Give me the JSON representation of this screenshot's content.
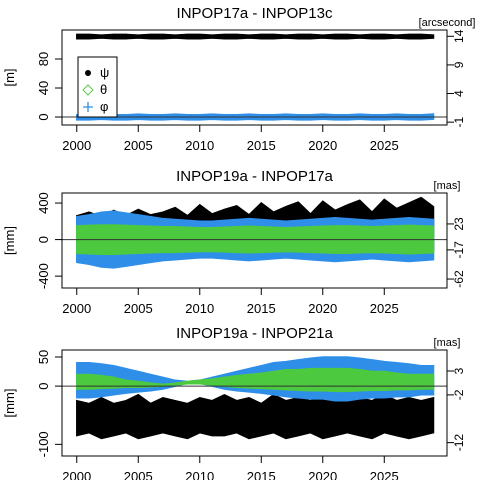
{
  "chart_data": [
    {
      "type": "band",
      "title": "INPOP17a - INPOP13c",
      "ylabel": "[m]",
      "y2label": "[arcsecond]",
      "x": [
        2000,
        2001,
        2002,
        2003,
        2004,
        2005,
        2006,
        2007,
        2008,
        2009,
        2010,
        2011,
        2012,
        2013,
        2014,
        2015,
        2016,
        2017,
        2018,
        2019,
        2020,
        2021,
        2022,
        2023,
        2024,
        2025,
        2026,
        2027,
        2028,
        2029
      ],
      "xlim": [
        1998.8,
        2030.1
      ],
      "xticks": [
        2000,
        2005,
        2010,
        2015,
        2020,
        2025
      ],
      "ylim": [
        -11,
        120
      ],
      "yticks": [
        0,
        40,
        80
      ],
      "y2lim": [
        -1.5,
        15.1
      ],
      "y2ticks": [
        -1,
        4,
        9,
        14
      ],
      "legend": "topleft",
      "series": [
        {
          "name": "ψ",
          "color": "#000000",
          "marker": "point",
          "values": [
            114,
            114,
            113,
            114,
            114,
            113,
            114,
            114,
            113,
            114,
            114,
            113,
            114,
            114,
            113,
            114,
            114,
            113,
            114,
            114,
            113,
            114,
            114,
            113,
            114,
            114,
            113,
            114,
            114,
            113
          ],
          "lower": [
            108,
            108,
            109,
            108,
            108,
            109,
            108,
            108,
            109,
            108,
            108,
            109,
            108,
            108,
            109,
            108,
            108,
            109,
            108,
            108,
            109,
            108,
            108,
            109,
            108,
            108,
            109,
            108,
            108,
            109
          ]
        },
        {
          "name": "θ",
          "color": "#5cc94a",
          "marker": "diamond",
          "values": [
            1,
            1,
            1,
            1,
            1,
            1,
            1,
            1,
            1,
            1,
            1,
            1,
            1,
            1,
            1,
            1,
            1,
            1,
            1,
            1,
            1,
            1,
            1,
            1,
            1,
            1,
            1,
            1,
            1,
            1
          ],
          "lower": [
            -1,
            -1,
            -1,
            -1,
            -1,
            -1,
            -1,
            -1,
            -1,
            -1,
            -1,
            -1,
            -1,
            -1,
            -1,
            -1,
            -1,
            -1,
            -1,
            -1,
            -1,
            -1,
            -1,
            -1,
            -1,
            -1,
            -1,
            -1,
            -1,
            -1
          ]
        },
        {
          "name": "φ",
          "color": "#2f8fe8",
          "marker": "plus",
          "values": [
            3,
            3,
            4,
            3,
            3,
            4,
            3,
            3,
            4,
            3,
            3,
            4,
            3,
            3,
            4,
            3,
            3,
            4,
            3,
            3,
            4,
            3,
            3,
            4,
            3,
            3,
            4,
            3,
            3,
            4
          ],
          "lower": [
            -4,
            -4,
            -3,
            -4,
            -4,
            -3,
            -4,
            -4,
            -3,
            -4,
            -4,
            -3,
            -4,
            -4,
            -3,
            -4,
            -4,
            -3,
            -4,
            -4,
            -3,
            -4,
            -4,
            -3,
            -4,
            -4,
            -3,
            -4,
            -4,
            -3
          ]
        }
      ]
    },
    {
      "type": "band",
      "title": "INPOP19a - INPOP17a",
      "ylabel": "[mm]",
      "y2label": "[mas]",
      "x": [
        2000,
        2001,
        2002,
        2003,
        2004,
        2005,
        2006,
        2007,
        2008,
        2009,
        2010,
        2011,
        2012,
        2013,
        2014,
        2015,
        2016,
        2017,
        2018,
        2019,
        2020,
        2021,
        2022,
        2023,
        2024,
        2025,
        2026,
        2027,
        2028,
        2029
      ],
      "xlim": [
        1998.8,
        2030.1
      ],
      "xticks": [
        2000,
        2005,
        2010,
        2015,
        2020,
        2025
      ],
      "ylim": [
        -530,
        510
      ],
      "yticks": [
        -400,
        0,
        400
      ],
      "y2lim": [
        -75.8,
        70.7
      ],
      "y2ticks": [
        -62,
        -17,
        23
      ],
      "series": [
        {
          "color": "#000000",
          "values": [
            260,
            300,
            250,
            320,
            260,
            330,
            270,
            300,
            350,
            260,
            380,
            280,
            330,
            370,
            270,
            400,
            300,
            360,
            410,
            280,
            420,
            320,
            380,
            430,
            300,
            440,
            340,
            400,
            460,
            360
          ],
          "lower": [
            -120,
            -100,
            -130,
            -110,
            -120,
            -100,
            -130,
            -110,
            -100,
            -120,
            -100,
            -120,
            -110,
            -100,
            -120,
            -110,
            -130,
            -150,
            -190,
            -210,
            -140,
            -120,
            -110,
            -100,
            -120,
            -110,
            -100,
            -120,
            -110,
            -100
          ]
        },
        {
          "color": "#2f8fe8",
          "values": [
            250,
            270,
            300,
            310,
            290,
            270,
            250,
            230,
            220,
            210,
            200,
            200,
            210,
            220,
            230,
            220,
            210,
            200,
            210,
            220,
            230,
            240,
            230,
            220,
            210,
            220,
            230,
            240,
            230,
            220
          ],
          "lower": [
            -250,
            -270,
            -300,
            -310,
            -290,
            -270,
            -250,
            -230,
            -220,
            -210,
            -200,
            -200,
            -210,
            -220,
            -230,
            -220,
            -210,
            -200,
            -210,
            -220,
            -230,
            -240,
            -230,
            -220,
            -210,
            -220,
            -230,
            -240,
            -230,
            -220
          ]
        },
        {
          "color": "#4cc93e",
          "values": [
            150,
            155,
            160,
            160,
            155,
            150,
            145,
            140,
            140,
            135,
            130,
            130,
            135,
            140,
            145,
            140,
            135,
            130,
            135,
            140,
            145,
            150,
            150,
            145,
            140,
            145,
            150,
            155,
            150,
            145
          ],
          "lower": [
            -150,
            -155,
            -160,
            -160,
            -155,
            -150,
            -145,
            -140,
            -140,
            -135,
            -130,
            -130,
            -135,
            -140,
            -145,
            -140,
            -135,
            -130,
            -135,
            -140,
            -145,
            -150,
            -150,
            -145,
            -140,
            -145,
            -150,
            -155,
            -150,
            -145
          ]
        }
      ]
    },
    {
      "type": "band",
      "title": "INPOP19a - INPOP21a",
      "ylabel": "[mm]",
      "y2label": "[mas]",
      "x": [
        2000,
        2001,
        2002,
        2003,
        2004,
        2005,
        2006,
        2007,
        2008,
        2009,
        2010,
        2011,
        2012,
        2013,
        2014,
        2015,
        2016,
        2017,
        2018,
        2019,
        2020,
        2021,
        2022,
        2023,
        2024,
        2025,
        2026,
        2027,
        2028,
        2029
      ],
      "xlim": [
        1998.8,
        2030.1
      ],
      "xticks": [
        2000,
        2005,
        2010,
        2015,
        2020,
        2025
      ],
      "ylim": [
        -120,
        62
      ],
      "yticks": [
        -100,
        0,
        50
      ],
      "y2lim": [
        -14.8,
        7.4
      ],
      "y2ticks": [
        -12,
        -2,
        3
      ],
      "series": [
        {
          "color": "#000000",
          "values": [
            -25,
            -30,
            -20,
            -30,
            -25,
            -15,
            -30,
            -20,
            -25,
            -30,
            -20,
            -25,
            -15,
            -25,
            -20,
            -30,
            -15,
            -25,
            -20,
            -25,
            -15,
            -20,
            -25,
            -20,
            -25,
            -15,
            -25,
            -20,
            -25,
            -20
          ],
          "lower": [
            -85,
            -80,
            -90,
            -85,
            -80,
            -90,
            -85,
            -80,
            -85,
            -90,
            -80,
            -85,
            -85,
            -80,
            -90,
            -85,
            -80,
            -90,
            -85,
            -80,
            -90,
            -85,
            -80,
            -85,
            -90,
            -80,
            -85,
            -90,
            -85,
            -80
          ]
        },
        {
          "color": "#2f8fe8",
          "values": [
            40,
            40,
            38,
            35,
            30,
            25,
            20,
            15,
            10,
            8,
            10,
            15,
            20,
            25,
            30,
            35,
            40,
            42,
            45,
            48,
            50,
            50,
            50,
            48,
            45,
            42,
            40,
            38,
            35,
            35
          ],
          "lower": [
            -20,
            -20,
            -18,
            -15,
            -12,
            -10,
            -8,
            -5,
            0,
            5,
            5,
            0,
            -5,
            -8,
            -10,
            -12,
            -15,
            -18,
            -20,
            -22,
            -22,
            -25,
            -25,
            -22,
            -20,
            -20,
            -18,
            -18,
            -15,
            -15
          ]
        },
        {
          "color": "#4cc93e",
          "values": [
            20,
            20,
            18,
            15,
            10,
            8,
            5,
            3,
            5,
            8,
            10,
            12,
            15,
            18,
            20,
            22,
            25,
            28,
            28,
            30,
            30,
            30,
            30,
            28,
            25,
            25,
            22,
            20,
            20,
            20
          ],
          "lower": [
            -5,
            -5,
            -4,
            -3,
            -2,
            -2,
            -1,
            0,
            2,
            4,
            4,
            2,
            0,
            -2,
            -3,
            -4,
            -5,
            -6,
            -7,
            -8,
            -8,
            -9,
            -9,
            -8,
            -7,
            -7,
            -6,
            -6,
            -5,
            -5
          ]
        }
      ]
    }
  ]
}
